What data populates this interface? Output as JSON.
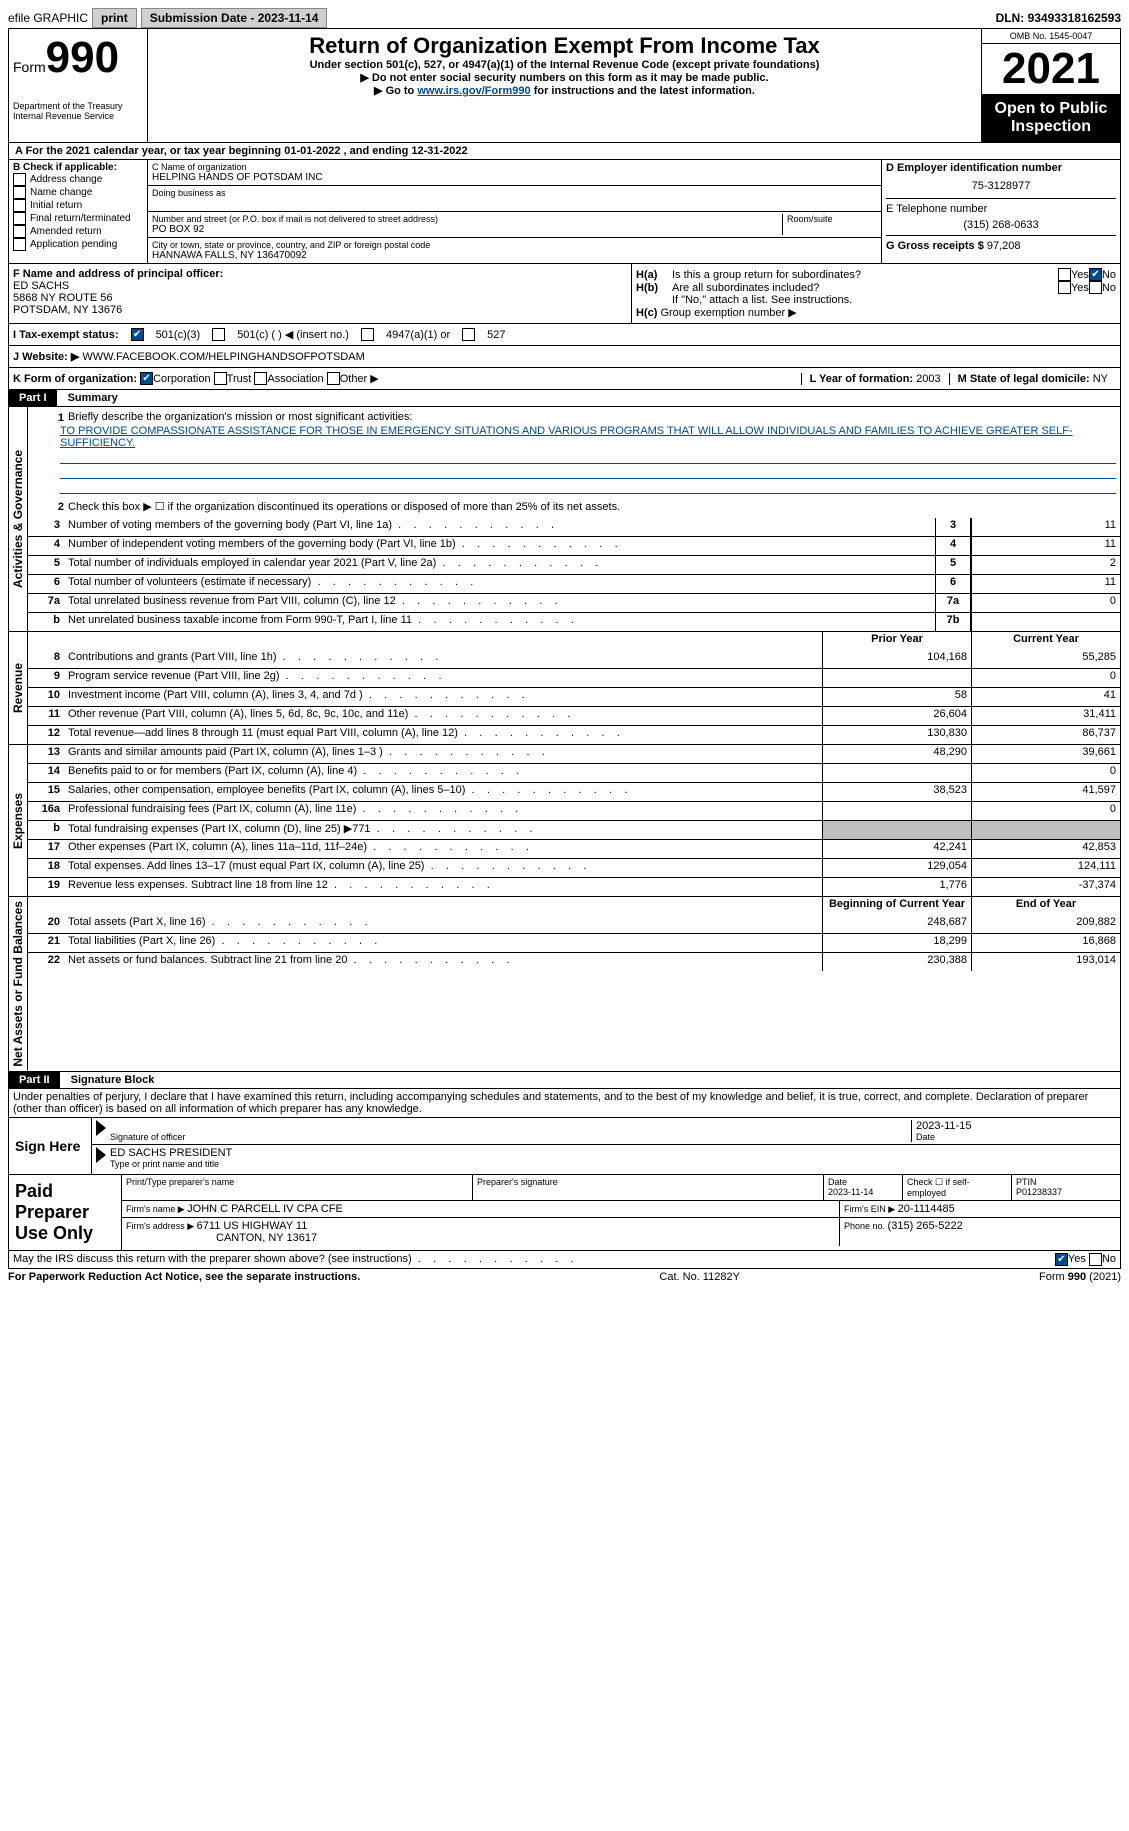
{
  "topbar": {
    "efile": "efile GRAPHIC",
    "print": "print",
    "sub_label": "Submission Date - ",
    "sub_date": "2023-11-14",
    "dln_label": "DLN: ",
    "dln": "93493318162593"
  },
  "header": {
    "form_word": "Form",
    "form_num": "990",
    "dept": "Department of the Treasury",
    "irs": "Internal Revenue Service",
    "title": "Return of Organization Exempt From Income Tax",
    "subtitle": "Under section 501(c), 527, or 4947(a)(1) of the Internal Revenue Code (except private foundations)",
    "note1": "Do not enter social security numbers on this form as it may be made public.",
    "note2_pre": "Go to ",
    "note2_link": "www.irs.gov/Form990",
    "note2_post": " for instructions and the latest information.",
    "omb": "OMB No. 1545-0047",
    "year": "2021",
    "open": "Open to Public Inspection"
  },
  "cal": {
    "a": "A For the 2021 calendar year, or tax year beginning ",
    "begin": "01-01-2022",
    "mid": " , and ending ",
    "end": "12-31-2022"
  },
  "b": {
    "label": "B Check if applicable:",
    "opts": [
      "Address change",
      "Name change",
      "Initial return",
      "Final return/terminated",
      "Amended return",
      "Application pending"
    ]
  },
  "c": {
    "name_label": "C Name of organization",
    "name": "HELPING HANDS OF POTSDAM INC",
    "dba_label": "Doing business as",
    "street_label": "Number and street (or P.O. box if mail is not delivered to street address)",
    "room_label": "Room/suite",
    "street": "PO BOX 92",
    "city_label": "City or town, state or province, country, and ZIP or foreign postal code",
    "city": "HANNAWA FALLS, NY  136470092"
  },
  "d": {
    "ein_label": "D Employer identification number",
    "ein": "75-3128977",
    "tel_label": "E Telephone number",
    "tel": "(315) 268-0633",
    "gross_label": "G Gross receipts $ ",
    "gross": "97,208"
  },
  "f": {
    "label": "F Name and address of principal officer:",
    "name": "ED SACHS",
    "addr1": "5868 NY ROUTE 56",
    "addr2": "POTSDAM, NY  13676"
  },
  "h": {
    "a": "Is this a group return for subordinates?",
    "b": "Are all subordinates included?",
    "b_note": "If \"No,\" attach a list. See instructions.",
    "c": "Group exemption number ▶",
    "ha_label": "H(a)",
    "hb_label": "H(b)",
    "hc_label": "H(c)",
    "yes": "Yes",
    "no": "No"
  },
  "i": {
    "label": "I Tax-exempt status:",
    "o1": "501(c)(3)",
    "o2": "501(c) (  ) ◀ (insert no.)",
    "o3": "4947(a)(1) or",
    "o4": "527"
  },
  "j": {
    "label": "J Website: ▶",
    "val": "WWW.FACEBOOK.COM/HELPINGHANDSOFPOTSDAM"
  },
  "k": {
    "label": "K Form of organization:",
    "o1": "Corporation",
    "o2": "Trust",
    "o3": "Association",
    "o4": "Other ▶"
  },
  "l": {
    "label": "L Year of formation: ",
    "val": "2003"
  },
  "m": {
    "label": "M State of legal domicile: ",
    "val": "NY"
  },
  "parts": {
    "p1": "Part I",
    "p1_title": "Summary",
    "p2": "Part II",
    "p2_title": "Signature Block"
  },
  "summary": {
    "l1_label": "Briefly describe the organization's mission or most significant activities:",
    "l1_text": "TO PROVIDE COMPASSIONATE ASSISTANCE FOR THOSE IN EMERGENCY SITUATIONS AND VARIOUS PROGRAMS THAT WILL ALLOW INDIVIDUALS AND FAMILIES TO ACHIEVE GREATER SELF-SUFFICIENCY.",
    "l2": "Check this box ▶ ☐ if the organization discontinued its operations or disposed of more than 25% of its net assets.",
    "vlabels": {
      "gov": "Activities & Governance",
      "rev": "Revenue",
      "exp": "Expenses",
      "net": "Net Assets or Fund Balances"
    },
    "gov_lines": [
      {
        "n": "3",
        "d": "Number of voting members of the governing body (Part VI, line 1a)",
        "box": "3",
        "v": "11"
      },
      {
        "n": "4",
        "d": "Number of independent voting members of the governing body (Part VI, line 1b)",
        "box": "4",
        "v": "11"
      },
      {
        "n": "5",
        "d": "Total number of individuals employed in calendar year 2021 (Part V, line 2a)",
        "box": "5",
        "v": "2"
      },
      {
        "n": "6",
        "d": "Total number of volunteers (estimate if necessary)",
        "box": "6",
        "v": "11"
      },
      {
        "n": "7a",
        "d": "Total unrelated business revenue from Part VIII, column (C), line 12",
        "box": "7a",
        "v": "0"
      },
      {
        "n": "b",
        "d": "Net unrelated business taxable income from Form 990-T, Part I, line 11",
        "box": "7b",
        "v": ""
      }
    ],
    "col_prior": "Prior Year",
    "col_current": "Current Year",
    "col_begin": "Beginning of Current Year",
    "col_end": "End of Year",
    "rev_lines": [
      {
        "n": "8",
        "d": "Contributions and grants (Part VIII, line 1h)",
        "p": "104,168",
        "c": "55,285"
      },
      {
        "n": "9",
        "d": "Program service revenue (Part VIII, line 2g)",
        "p": "",
        "c": "0"
      },
      {
        "n": "10",
        "d": "Investment income (Part VIII, column (A), lines 3, 4, and 7d )",
        "p": "58",
        "c": "41"
      },
      {
        "n": "11",
        "d": "Other revenue (Part VIII, column (A), lines 5, 6d, 8c, 9c, 10c, and 11e)",
        "p": "26,604",
        "c": "31,411"
      },
      {
        "n": "12",
        "d": "Total revenue—add lines 8 through 11 (must equal Part VIII, column (A), line 12)",
        "p": "130,830",
        "c": "86,737"
      }
    ],
    "exp_lines": [
      {
        "n": "13",
        "d": "Grants and similar amounts paid (Part IX, column (A), lines 1–3 )",
        "p": "48,290",
        "c": "39,661"
      },
      {
        "n": "14",
        "d": "Benefits paid to or for members (Part IX, column (A), line 4)",
        "p": "",
        "c": "0"
      },
      {
        "n": "15",
        "d": "Salaries, other compensation, employee benefits (Part IX, column (A), lines 5–10)",
        "p": "38,523",
        "c": "41,597"
      },
      {
        "n": "16a",
        "d": "Professional fundraising fees (Part IX, column (A), line 11e)",
        "p": "",
        "c": "0"
      },
      {
        "n": "b",
        "d": "Total fundraising expenses (Part IX, column (D), line 25) ▶771",
        "p": "__shade__",
        "c": "__shade__"
      },
      {
        "n": "17",
        "d": "Other expenses (Part IX, column (A), lines 11a–11d, 11f–24e)",
        "p": "42,241",
        "c": "42,853"
      },
      {
        "n": "18",
        "d": "Total expenses. Add lines 13–17 (must equal Part IX, column (A), line 25)",
        "p": "129,054",
        "c": "124,111"
      },
      {
        "n": "19",
        "d": "Revenue less expenses. Subtract line 18 from line 12",
        "p": "1,776",
        "c": "-37,374"
      }
    ],
    "net_lines": [
      {
        "n": "20",
        "d": "Total assets (Part X, line 16)",
        "p": "248,687",
        "c": "209,882"
      },
      {
        "n": "21",
        "d": "Total liabilities (Part X, line 26)",
        "p": "18,299",
        "c": "16,868"
      },
      {
        "n": "22",
        "d": "Net assets or fund balances. Subtract line 21 from line 20",
        "p": "230,388",
        "c": "193,014"
      }
    ]
  },
  "sig": {
    "penalties": "Under penalties of perjury, I declare that I have examined this return, including accompanying schedules and statements, and to the best of my knowledge and belief, it is true, correct, and complete. Declaration of preparer (other than officer) is based on all information of which preparer has any knowledge.",
    "sign_here": "Sign Here",
    "sig_officer": "Signature of officer",
    "date_label": "Date",
    "sig_date": "2023-11-15",
    "name_title": "ED SACHS PRESIDENT",
    "type_label": "Type or print name and title"
  },
  "paid": {
    "label": "Paid Preparer Use Only",
    "print_label": "Print/Type preparer's name",
    "prep_sig_label": "Preparer's signature",
    "date_label": "Date",
    "date": "2023-11-14",
    "check_label": "Check ☐ if self-employed",
    "ptin_label": "PTIN",
    "ptin": "P01238337",
    "firm_name_label": "Firm's name  ▶ ",
    "firm_name": "JOHN C PARCELL IV CPA CFE",
    "firm_ein_label": "Firm's EIN ▶ ",
    "firm_ein": "20-1114485",
    "firm_addr_label": "Firm's address ▶ ",
    "firm_addr1": "6711 US HIGHWAY 11",
    "firm_addr2": "CANTON, NY  13617",
    "phone_label": "Phone no. ",
    "phone": "(315) 265-5222",
    "discuss": "May the IRS discuss this return with the preparer shown above? (see instructions)",
    "yes": "Yes",
    "no": "No"
  },
  "footer": {
    "left": "For Paperwork Reduction Act Notice, see the separate instructions.",
    "center": "Cat. No. 11282Y",
    "right": "Form 990 (2021)"
  }
}
